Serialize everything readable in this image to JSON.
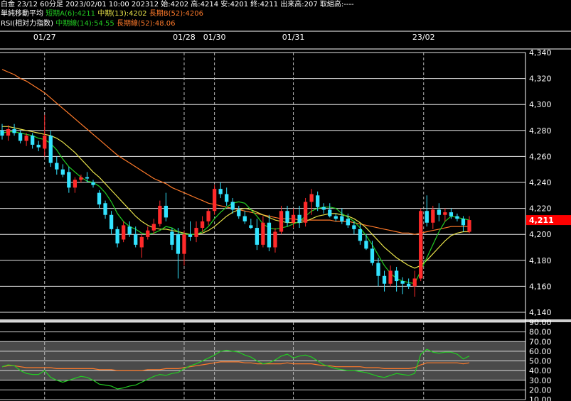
{
  "header": {
    "line1": "白金 23/12 60分足 2023/02/01 10:00 202312 始:4202 高:4214 安:4201 終:4211 出来高:207 取組高:----",
    "ma_label": "単純移動平均",
    "ma_short": "短期A(6):4211",
    "ma_mid": "中期(13):4202",
    "ma_long": "長期B(52):4206",
    "rsi_label": "RSI(相対力指数)",
    "rsi_mid": "中期線(14):54.55",
    "rsi_long": "長期線(52):48.06"
  },
  "colors": {
    "background": "#000000",
    "up": "#ff2a2a",
    "down": "#33e3ff",
    "ma_short": "#22cc22",
    "ma_mid": "#e8e24a",
    "ma_long": "#ff7a2a",
    "rsi_mid": "#22cc22",
    "rsi_long": "#ff7a2a",
    "grid": "#ffffff",
    "badge": "#ff0000"
  },
  "chart_data": [
    {
      "type": "candlestick",
      "x_labels": [
        "01/27",
        "01/28",
        "01/30",
        "01/31",
        "23/02"
      ],
      "ylim": [
        4140,
        4340
      ],
      "y_ticks": [
        "4,340",
        "4,320",
        "4,300",
        "4,280",
        "4,260",
        "4,240",
        "4,220",
        "4,200",
        "4,180",
        "4,160",
        "4,140"
      ],
      "y_tick_values": [
        4340,
        4320,
        4300,
        4280,
        4260,
        4240,
        4220,
        4200,
        4180,
        4160,
        4140
      ],
      "last_price_label": "4,211",
      "last_price": 4211,
      "ohlc": [
        [
          4280,
          4285,
          4273,
          4276
        ],
        [
          4276,
          4284,
          4272,
          4281
        ],
        [
          4281,
          4285,
          4276,
          4278
        ],
        [
          4278,
          4280,
          4270,
          4272
        ],
        [
          4272,
          4278,
          4268,
          4276
        ],
        [
          4276,
          4278,
          4266,
          4269
        ],
        [
          4269,
          4272,
          4264,
          4267
        ],
        [
          4266,
          4292,
          4260,
          4276
        ],
        [
          4276,
          4280,
          4252,
          4255
        ],
        [
          4255,
          4260,
          4246,
          4250
        ],
        [
          4250,
          4254,
          4244,
          4246
        ],
        [
          4248,
          4252,
          4232,
          4236
        ],
        [
          4236,
          4244,
          4232,
          4242
        ],
        [
          4242,
          4246,
          4240,
          4244
        ],
        [
          4244,
          4248,
          4240,
          4243
        ],
        [
          4240,
          4242,
          4236,
          4238
        ],
        [
          4232,
          4234,
          4220,
          4223
        ],
        [
          4224,
          4226,
          4212,
          4215
        ],
        [
          4215,
          4218,
          4200,
          4204
        ],
        [
          4204,
          4206,
          4190,
          4193
        ],
        [
          4196,
          4210,
          4194,
          4207
        ],
        [
          4206,
          4210,
          4198,
          4200
        ],
        [
          4200,
          4206,
          4190,
          4192
        ],
        [
          4190,
          4200,
          4182,
          4198
        ],
        [
          4198,
          4206,
          4196,
          4203
        ],
        [
          4203,
          4212,
          4200,
          4208
        ],
        [
          4208,
          4226,
          4206,
          4222
        ],
        [
          4222,
          4232,
          4210,
          4213
        ],
        [
          4202,
          4205,
          4188,
          4192
        ],
        [
          4200,
          4205,
          4166,
          4185
        ],
        [
          4185,
          4203,
          4176,
          4200
        ],
        [
          4200,
          4210,
          4195,
          4198
        ],
        [
          4198,
          4210,
          4194,
          4205
        ],
        [
          4205,
          4214,
          4202,
          4210
        ],
        [
          4210,
          4220,
          4207,
          4218
        ],
        [
          4218,
          4238,
          4215,
          4235
        ],
        [
          4235,
          4240,
          4228,
          4231
        ],
        [
          4231,
          4236,
          4222,
          4225
        ],
        [
          4225,
          4228,
          4216,
          4219
        ],
        [
          4219,
          4222,
          4212,
          4214
        ],
        [
          4214,
          4218,
          4208,
          4210
        ],
        [
          4207,
          4212,
          4204,
          4205
        ],
        [
          4205,
          4212,
          4188,
          4192
        ],
        [
          4192,
          4214,
          4190,
          4209
        ],
        [
          4209,
          4215,
          4187,
          4190
        ],
        [
          4190,
          4205,
          4186,
          4202
        ],
        [
          4202,
          4222,
          4200,
          4218
        ],
        [
          4218,
          4222,
          4206,
          4209
        ],
        [
          4209,
          4220,
          4205,
          4215
        ],
        [
          4215,
          4222,
          4205,
          4209
        ],
        [
          4209,
          4228,
          4206,
          4225
        ],
        [
          4225,
          4235,
          4215,
          4231
        ],
        [
          4230,
          4233,
          4218,
          4221
        ],
        [
          4221,
          4224,
          4216,
          4219
        ],
        [
          4219,
          4224,
          4213,
          4214
        ],
        [
          4214,
          4216,
          4210,
          4212
        ],
        [
          4214,
          4220,
          4208,
          4210
        ],
        [
          4212,
          4216,
          4205,
          4207
        ],
        [
          4207,
          4210,
          4200,
          4204
        ],
        [
          4204,
          4208,
          4192,
          4195
        ],
        [
          4195,
          4200,
          4188,
          4189
        ],
        [
          4189,
          4195,
          4176,
          4178
        ],
        [
          4178,
          4182,
          4160,
          4168
        ],
        [
          4168,
          4172,
          4156,
          4162
        ],
        [
          4162,
          4176,
          4160,
          4172
        ],
        [
          4172,
          4175,
          4156,
          4164
        ],
        [
          4164,
          4167,
          4154,
          4162
        ],
        [
          4162,
          4166,
          4158,
          4160
        ],
        [
          4160,
          4172,
          4152,
          4166
        ],
        [
          4166,
          4220,
          4164,
          4218
        ],
        [
          4218,
          4230,
          4206,
          4209
        ],
        [
          4209,
          4222,
          4204,
          4219
        ],
        [
          4219,
          4224,
          4210,
          4215
        ],
        [
          4215,
          4220,
          4210,
          4217
        ],
        [
          4217,
          4220,
          4212,
          4214
        ],
        [
          4214,
          4216,
          4210,
          4212
        ],
        [
          4212,
          4214,
          4202,
          4207
        ],
        [
          4202,
          4214,
          4201,
          4211
        ]
      ],
      "ma_short": [
        4278,
        4279,
        4279,
        4278,
        4277,
        4276,
        4274,
        4273,
        4270,
        4265,
        4258,
        4252,
        4248,
        4244,
        4241,
        4240,
        4237,
        4232,
        4225,
        4216,
        4210,
        4206,
        4204,
        4201,
        4200,
        4201,
        4203,
        4206,
        4205,
        4202,
        4200,
        4200,
        4200,
        4202,
        4206,
        4212,
        4217,
        4221,
        4224,
        4225,
        4224,
        4219,
        4214,
        4208,
        4205,
        4204,
        4205,
        4206,
        4208,
        4210,
        4214,
        4218,
        4220,
        4221,
        4221,
        4220,
        4216,
        4213,
        4210,
        4205,
        4199,
        4192,
        4184,
        4176,
        4170,
        4166,
        4164,
        4163,
        4162,
        4172,
        4182,
        4192,
        4202,
        4210,
        4214,
        4213,
        4212,
        4211
      ],
      "ma_mid": [
        4283,
        4283,
        4282,
        4281,
        4280,
        4279,
        4278,
        4277,
        4276,
        4274,
        4271,
        4267,
        4263,
        4258,
        4253,
        4248,
        4244,
        4239,
        4234,
        4229,
        4224,
        4219,
        4214,
        4210,
        4207,
        4205,
        4204,
        4204,
        4203,
        4202,
        4201,
        4200,
        4200,
        4201,
        4203,
        4206,
        4210,
        4214,
        4217,
        4219,
        4220,
        4219,
        4217,
        4215,
        4213,
        4211,
        4210,
        4209,
        4209,
        4209,
        4210,
        4212,
        4214,
        4215,
        4216,
        4216,
        4215,
        4214,
        4212,
        4209,
        4205,
        4200,
        4195,
        4190,
        4186,
        4182,
        4179,
        4176,
        4174,
        4176,
        4180,
        4185,
        4190,
        4195,
        4199,
        4201,
        4202,
        4202
      ],
      "ma_long": [
        4327,
        4325,
        4323,
        4320,
        4318,
        4315,
        4312,
        4309,
        4305,
        4301,
        4297,
        4293,
        4289,
        4285,
        4281,
        4277,
        4273,
        4269,
        4265,
        4261,
        4258,
        4255,
        4252,
        4249,
        4246,
        4243,
        4241,
        4239,
        4236,
        4234,
        4232,
        4230,
        4228,
        4226,
        4224,
        4223,
        4222,
        4221,
        4220,
        4219,
        4218,
        4217,
        4216,
        4215,
        4214,
        4213,
        4212,
        4212,
        4212,
        4211,
        4211,
        4211,
        4211,
        4211,
        4211,
        4210,
        4210,
        4210,
        4209,
        4208,
        4207,
        4206,
        4205,
        4204,
        4203,
        4202,
        4201,
        4201,
        4200,
        4201,
        4202,
        4203,
        4204,
        4205,
        4206,
        4206,
        4206,
        4206
      ]
    },
    {
      "type": "line",
      "title": "RSI",
      "ylim": [
        10,
        90
      ],
      "y_ticks": [
        "90.00",
        "80.00",
        "70.00",
        "60.00",
        "50.00",
        "40.00",
        "30.00",
        "20.00",
        "10.00"
      ],
      "y_tick_values": [
        90,
        80,
        70,
        60,
        50,
        40,
        30,
        20,
        10
      ],
      "series": [
        {
          "name": "中期線(14)",
          "values": [
            44,
            46,
            45,
            40,
            37,
            36,
            36,
            40,
            33,
            30,
            28,
            30,
            32,
            34,
            33,
            30,
            26,
            25,
            24,
            21,
            22,
            24,
            25,
            28,
            31,
            34,
            36,
            35,
            37,
            38,
            42,
            45,
            47,
            50,
            53,
            56,
            60,
            61,
            60,
            59,
            56,
            54,
            50,
            47,
            48,
            51,
            55,
            57,
            53,
            55,
            56,
            54,
            50,
            46,
            44,
            42,
            41,
            40,
            40,
            39,
            38,
            36,
            34,
            33,
            35,
            37,
            36,
            35,
            37,
            57,
            62,
            59,
            58,
            59,
            59,
            57,
            52,
            55
          ]
        },
        {
          "name": "長期線(52)",
          "values": [
            44,
            45,
            45,
            44,
            43,
            43,
            43,
            43,
            43,
            42,
            42,
            42,
            42,
            42,
            42,
            42,
            41,
            41,
            41,
            40,
            40,
            40,
            40,
            40,
            41,
            41,
            41,
            42,
            42,
            42,
            43,
            44,
            45,
            46,
            47,
            48,
            49,
            49,
            49,
            49,
            48,
            48,
            47,
            47,
            47,
            47,
            47,
            48,
            47,
            47,
            47,
            47,
            46,
            45,
            45,
            44,
            44,
            44,
            44,
            44,
            43,
            43,
            43,
            42,
            42,
            42,
            42,
            42,
            43,
            46,
            48,
            48,
            48,
            48,
            48,
            48,
            47,
            48
          ]
        }
      ]
    }
  ]
}
